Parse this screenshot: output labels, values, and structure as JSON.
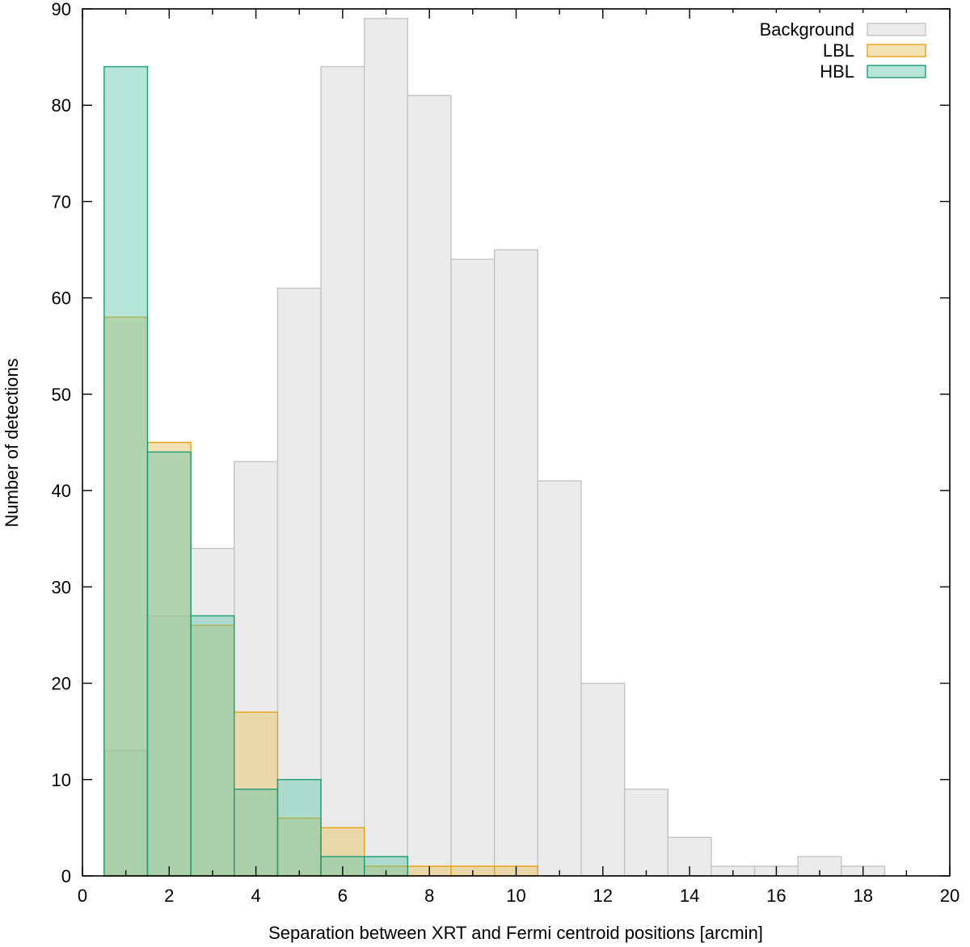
{
  "chart_data": {
    "type": "bar",
    "subtype": "overlapping-histogram",
    "xlabel": "Separation between XRT and Fermi centroid positions [arcmin]",
    "ylabel": "Number of detections",
    "xlim": [
      0,
      20
    ],
    "ylim": [
      0,
      90
    ],
    "xticks": [
      "0",
      "2",
      "4",
      "6",
      "8",
      "10",
      "12",
      "14",
      "16",
      "18",
      "20"
    ],
    "yticks": [
      "0",
      "10",
      "20",
      "30",
      "40",
      "50",
      "60",
      "70",
      "80",
      "90"
    ],
    "bin_width": 1,
    "bin_centers": [
      1,
      2,
      3,
      4,
      5,
      6,
      7,
      8,
      9,
      10,
      11,
      12,
      13,
      14,
      15,
      16,
      17,
      18
    ],
    "grid": false,
    "legend_position": "top-right",
    "series": [
      {
        "name": "Background",
        "fill": "#ebebeb",
        "stroke": "#c4c4c4",
        "values": [
          13,
          27,
          34,
          43,
          61,
          84,
          89,
          81,
          64,
          65,
          41,
          20,
          9,
          4,
          1,
          1,
          2,
          1
        ]
      },
      {
        "name": "LBL",
        "fill": "#e9c46a",
        "stroke": "#e8a317",
        "values": [
          58,
          45,
          26,
          17,
          6,
          5,
          1,
          1,
          1,
          1,
          0,
          0,
          0,
          0,
          0,
          0,
          0,
          0
        ]
      },
      {
        "name": "HBL",
        "fill": "#5fc5a9",
        "stroke": "#1f9b76",
        "values": [
          84,
          44,
          27,
          9,
          10,
          2,
          2,
          0,
          0,
          0,
          0,
          0,
          0,
          0,
          0,
          0,
          0,
          0
        ]
      }
    ]
  }
}
